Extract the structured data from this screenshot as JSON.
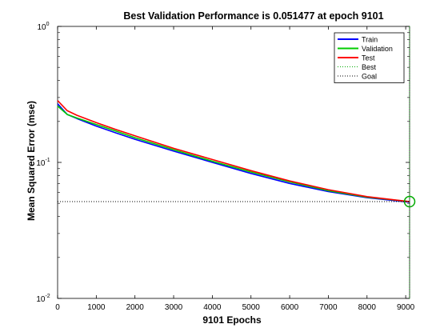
{
  "chart_data": {
    "type": "line",
    "title": "Best Validation Performance is 0.051477 at epoch 9101",
    "xlabel": "9101 Epochs",
    "ylabel": "Mean Squared Error  (mse)",
    "xlim": [
      0,
      9101
    ],
    "ylim": [
      0.01,
      1
    ],
    "yscale": "log",
    "x_ticks": [
      0,
      1000,
      2000,
      3000,
      4000,
      5000,
      6000,
      7000,
      8000,
      9000
    ],
    "y_ticks": [
      {
        "value": 0.01,
        "base": "10",
        "exp": "-2"
      },
      {
        "value": 0.1,
        "base": "10",
        "exp": "-1"
      },
      {
        "value": 1,
        "base": "10",
        "exp": "0"
      }
    ],
    "grid": false,
    "legend_position": "top-right",
    "series": [
      {
        "name": "Train",
        "color": "#0000ff",
        "style": "solid",
        "x": [
          0,
          250,
          500,
          1000,
          1500,
          2000,
          3000,
          4000,
          5000,
          6000,
          7000,
          8000,
          9101
        ],
        "y": [
          0.27,
          0.225,
          0.21,
          0.185,
          0.165,
          0.148,
          0.121,
          0.1,
          0.083,
          0.07,
          0.061,
          0.055,
          0.051
        ]
      },
      {
        "name": "Validation",
        "color": "#00cc00",
        "style": "solid",
        "x": [
          0,
          250,
          500,
          1000,
          1500,
          2000,
          3000,
          4000,
          5000,
          6000,
          7000,
          8000,
          9101
        ],
        "y": [
          0.26,
          0.225,
          0.212,
          0.19,
          0.17,
          0.152,
          0.124,
          0.102,
          0.085,
          0.072,
          0.062,
          0.0555,
          0.051477
        ]
      },
      {
        "name": "Test",
        "color": "#ff0000",
        "style": "solid",
        "x": [
          0,
          250,
          500,
          1000,
          1500,
          2000,
          3000,
          4000,
          5000,
          6000,
          7000,
          8000,
          9101
        ],
        "y": [
          0.285,
          0.24,
          0.222,
          0.196,
          0.175,
          0.157,
          0.127,
          0.105,
          0.087,
          0.073,
          0.063,
          0.056,
          0.0515
        ]
      },
      {
        "name": "Best",
        "color": "#00aa00",
        "style": "dotted",
        "kind": "marker",
        "x": 9101,
        "y": 0.051477
      },
      {
        "name": "Goal",
        "color": "#000000",
        "style": "dotted",
        "kind": "hline",
        "y": 0.051477
      }
    ]
  }
}
